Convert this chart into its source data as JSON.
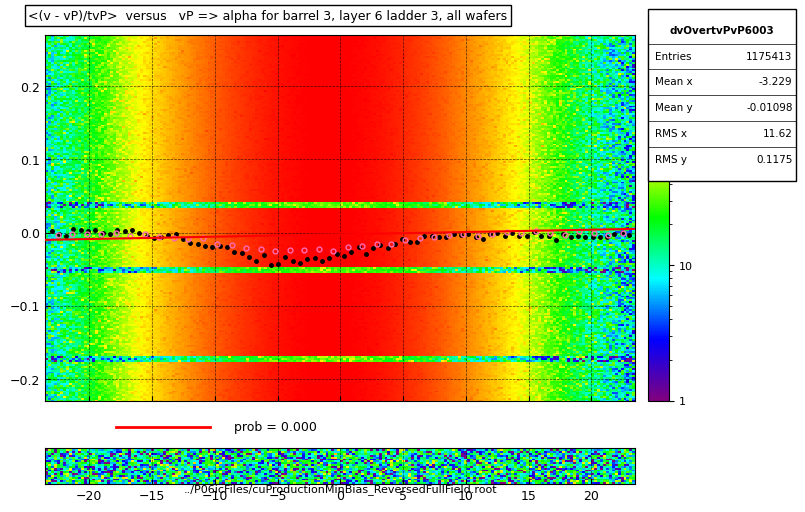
{
  "title": "<(v - vP)/tvP>  versus   vP => alpha for barrel 3, layer 6 ladder 3, all wafers",
  "xlabel": "../P06icFiles/cuProductionMinBias_ReversedFullField.root",
  "hist_name": "dvOvertvPvP6003",
  "entries": "1175413",
  "mean_x": "-3.229",
  "mean_y": "-0.01098",
  "rms_x": "11.62",
  "rms_y": "0.1175",
  "xmin": -23.5,
  "xmax": 23.5,
  "ymin": -0.25,
  "ymax": 0.27,
  "x_ticks": [
    -20,
    -15,
    -10,
    -5,
    0,
    5,
    10,
    15,
    20
  ],
  "y_ticks": [
    0.2,
    0.1,
    0,
    -0.1,
    -0.2
  ],
  "prob_label": "prob = 0.000",
  "background_color": "#ffffff",
  "legend_panel_color": "#e8e8e8",
  "fit_line_color": "#ff0000",
  "profile_color": "#000000",
  "mean_profile_color": "#ff69b4"
}
